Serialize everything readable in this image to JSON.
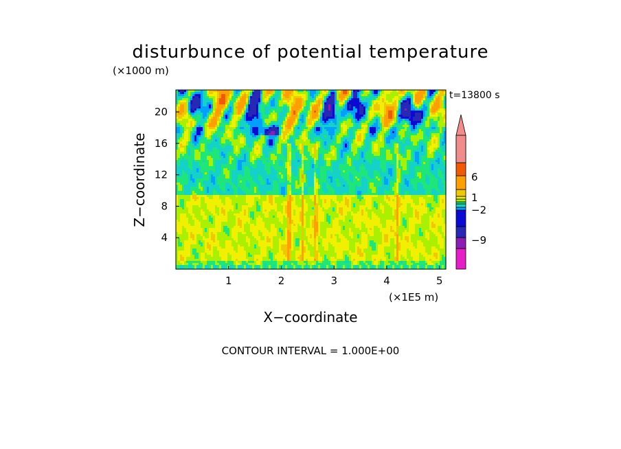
{
  "chart_data": {
    "type": "heatmap",
    "title": "disturbunce of potential temperature",
    "xlabel": "X−coordinate",
    "ylabel": "Z−coordinate",
    "x_unit": "(×1E5 m)",
    "y_unit": "(×1000 m)",
    "time_label": "t=13800 s",
    "footer": "CONTOUR INTERVAL = 1.000E+00",
    "x_ticks": [
      "1",
      "2",
      "3",
      "4",
      "5"
    ],
    "y_ticks": [
      "4",
      "8",
      "12",
      "16",
      "20"
    ],
    "xlim": [
      0,
      5.12
    ],
    "ylim": [
      0,
      22.8
    ],
    "grid": false,
    "colorbar": {
      "labels": [
        "6",
        "1",
        "−2",
        "−9"
      ],
      "levels": [
        {
          "value": -12,
          "color": "#e61ec8"
        },
        {
          "value": -9,
          "color": "#8c1eb4"
        },
        {
          "value": -6,
          "color": "#2828b4"
        },
        {
          "value": -3,
          "color": "#0a0ad2"
        },
        {
          "value": -2,
          "color": "#00a0ff"
        },
        {
          "value": -1,
          "color": "#14d2c8"
        },
        {
          "value": 0,
          "color": "#1ee678"
        },
        {
          "value": 1,
          "color": "#aaf000"
        },
        {
          "value": 2,
          "color": "#f0f000"
        },
        {
          "value": 3,
          "color": "#f0c800"
        },
        {
          "value": 4,
          "color": "#ffa000"
        },
        {
          "value": 6,
          "color": "#f05a00"
        },
        {
          "value": 9,
          "color": "#e61e1e"
        },
        {
          "value": 12,
          "color": "#f08c8c"
        }
      ]
    },
    "field_bands": [
      {
        "z_from": 0,
        "z_to": 1,
        "value": 1
      },
      {
        "z_from": 1,
        "z_to": 9.5,
        "value": 2
      },
      {
        "z_from": 9.5,
        "z_to": 14,
        "value": 0
      },
      {
        "z_from": 14,
        "z_to": 18,
        "value": 0.5
      },
      {
        "z_from": 18,
        "z_to": 22.8,
        "value": 1.5
      }
    ]
  }
}
